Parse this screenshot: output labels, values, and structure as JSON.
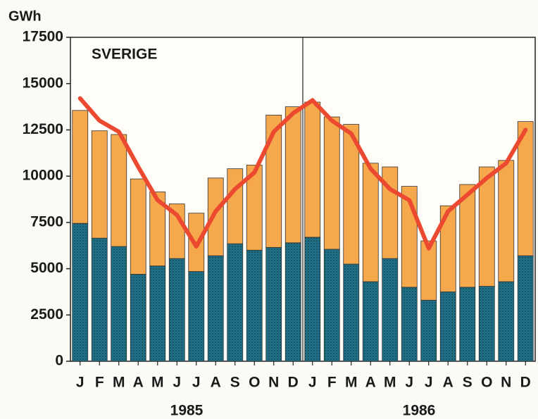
{
  "chart_data": {
    "type": "bar",
    "stacked": true,
    "title": "SVERIGE",
    "y_label": "GWh",
    "categories": [
      "J",
      "F",
      "M",
      "A",
      "M",
      "J",
      "J",
      "A",
      "S",
      "O",
      "N",
      "D",
      "J",
      "F",
      "M",
      "A",
      "M",
      "J",
      "J",
      "A",
      "S",
      "O",
      "N",
      "D"
    ],
    "groups": [
      "1985",
      "1986"
    ],
    "series": [
      {
        "color": "#1f6e84",
        "values": [
          7450,
          6650,
          6200,
          4700,
          5150,
          5550,
          4850,
          5700,
          6350,
          6000,
          6150,
          6400,
          6700,
          6050,
          5250,
          4300,
          5550,
          4000,
          3300,
          3750,
          4000,
          4050,
          4300,
          5700
        ]
      },
      {
        "color": "#f6a94c",
        "values": [
          6100,
          5800,
          6050,
          5150,
          4000,
          2950,
          3150,
          4200,
          4050,
          4600,
          7150,
          7350,
          7300,
          7150,
          7550,
          6400,
          4950,
          5450,
          3200,
          4650,
          5550,
          6450,
          6550,
          7250
        ]
      }
    ],
    "line": {
      "color": "#ec4a30",
      "values": [
        14200,
        13000,
        12400,
        10500,
        8700,
        7900,
        6200,
        8100,
        9300,
        10200,
        12400,
        13400,
        14100,
        13000,
        12300,
        10400,
        9300,
        8700,
        6100,
        8100,
        9000,
        9900,
        10700,
        12500
      ]
    },
    "ylim": [
      0,
      17500
    ],
    "yticks": [
      0,
      2500,
      5000,
      7500,
      10000,
      12500,
      15000,
      17500
    ]
  }
}
